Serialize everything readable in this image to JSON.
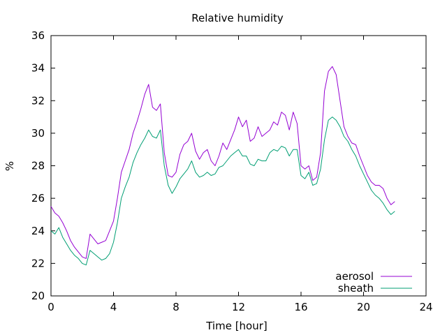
{
  "chart_data": {
    "type": "line",
    "title": "Relative humidity",
    "xlabel": "Time [hour]",
    "ylabel": "%",
    "xlim": [
      0,
      24
    ],
    "ylim": [
      20,
      36
    ],
    "xticks": [
      "0",
      "4",
      "8",
      "12",
      "16",
      "20",
      "24"
    ],
    "yticks": [
      "20",
      "22",
      "24",
      "26",
      "28",
      "30",
      "32",
      "34",
      "36"
    ],
    "grid": false,
    "legend": "bottom-right",
    "series": [
      {
        "name": "aerosol",
        "color": "#9400d3",
        "x": [
          0,
          0.25,
          0.5,
          0.75,
          1.0,
          1.25,
          1.5,
          1.75,
          2.0,
          2.25,
          2.5,
          2.75,
          3.0,
          3.25,
          3.5,
          3.75,
          4.0,
          4.25,
          4.5,
          4.75,
          5.0,
          5.25,
          5.5,
          5.75,
          6.0,
          6.25,
          6.5,
          6.75,
          7.0,
          7.25,
          7.5,
          7.75,
          8.0,
          8.25,
          8.5,
          8.75,
          9.0,
          9.25,
          9.5,
          9.75,
          10.0,
          10.25,
          10.5,
          10.75,
          11.0,
          11.25,
          11.5,
          11.75,
          12.0,
          12.25,
          12.5,
          12.75,
          13.0,
          13.25,
          13.5,
          13.75,
          14.0,
          14.25,
          14.5,
          14.75,
          15.0,
          15.25,
          15.5,
          15.75,
          16.0,
          16.25,
          16.5,
          16.75,
          17.0,
          17.25,
          17.5,
          17.75,
          18.0,
          18.25,
          18.5,
          18.75,
          19.0,
          19.25,
          19.5,
          19.75,
          20.0,
          20.25,
          20.5,
          20.75,
          21.0,
          21.25,
          21.5,
          21.75,
          22.0
        ],
        "y": [
          25.5,
          25.1,
          24.9,
          24.5,
          24.0,
          23.4,
          23.0,
          22.7,
          22.4,
          22.3,
          23.8,
          23.5,
          23.2,
          23.3,
          23.4,
          24.0,
          24.6,
          26.0,
          27.6,
          28.3,
          29.0,
          30.0,
          30.7,
          31.5,
          32.4,
          33.0,
          31.6,
          31.4,
          31.8,
          28.8,
          27.4,
          27.3,
          27.6,
          28.7,
          29.3,
          29.5,
          30.0,
          28.9,
          28.4,
          28.8,
          29.0,
          28.3,
          28.0,
          28.6,
          29.4,
          29.0,
          29.6,
          30.2,
          31.0,
          30.4,
          30.8,
          29.5,
          29.7,
          30.4,
          29.8,
          30.0,
          30.2,
          30.7,
          30.5,
          31.3,
          31.1,
          30.2,
          31.3,
          30.6,
          28.0,
          27.8,
          28.0,
          27.1,
          27.3,
          28.8,
          32.6,
          33.8,
          34.1,
          33.6,
          32.0,
          30.4,
          29.8,
          29.4,
          29.3,
          28.6,
          28.0,
          27.4,
          27.0,
          26.8,
          26.8,
          26.6,
          26.0,
          25.6,
          25.8
        ]
      },
      {
        "name": "sheath",
        "color": "#009e73",
        "x": [
          0,
          0.25,
          0.5,
          0.75,
          1.0,
          1.25,
          1.5,
          1.75,
          2.0,
          2.25,
          2.5,
          2.75,
          3.0,
          3.25,
          3.5,
          3.75,
          4.0,
          4.25,
          4.5,
          4.75,
          5.0,
          5.25,
          5.5,
          5.75,
          6.0,
          6.25,
          6.5,
          6.75,
          7.0,
          7.25,
          7.5,
          7.75,
          8.0,
          8.25,
          8.5,
          8.75,
          9.0,
          9.25,
          9.5,
          9.75,
          10.0,
          10.25,
          10.5,
          10.75,
          11.0,
          11.25,
          11.5,
          11.75,
          12.0,
          12.25,
          12.5,
          12.75,
          13.0,
          13.25,
          13.5,
          13.75,
          14.0,
          14.25,
          14.5,
          14.75,
          15.0,
          15.25,
          15.5,
          15.75,
          16.0,
          16.25,
          16.5,
          16.75,
          17.0,
          17.25,
          17.5,
          17.75,
          18.0,
          18.25,
          18.5,
          18.75,
          19.0,
          19.25,
          19.5,
          19.75,
          20.0,
          20.25,
          20.5,
          20.75,
          21.0,
          21.25,
          21.5,
          21.75,
          22.0
        ],
        "y": [
          24.0,
          23.8,
          24.2,
          23.6,
          23.2,
          22.8,
          22.5,
          22.3,
          22.0,
          21.9,
          22.8,
          22.6,
          22.4,
          22.2,
          22.3,
          22.6,
          23.3,
          24.5,
          26.0,
          26.7,
          27.3,
          28.2,
          28.8,
          29.3,
          29.7,
          30.2,
          29.8,
          29.7,
          30.2,
          28.0,
          26.8,
          26.3,
          26.7,
          27.2,
          27.5,
          27.8,
          28.3,
          27.6,
          27.3,
          27.4,
          27.6,
          27.4,
          27.5,
          27.9,
          28.0,
          28.3,
          28.6,
          28.8,
          29.0,
          28.6,
          28.6,
          28.1,
          28.0,
          28.4,
          28.3,
          28.3,
          28.8,
          29.0,
          28.9,
          29.2,
          29.1,
          28.6,
          29.0,
          29.0,
          27.4,
          27.2,
          27.6,
          26.8,
          26.9,
          27.8,
          29.6,
          30.8,
          31.0,
          30.8,
          30.4,
          29.8,
          29.5,
          29.0,
          28.6,
          28.0,
          27.5,
          27.0,
          26.5,
          26.2,
          26.0,
          25.7,
          25.3,
          25.0,
          25.2
        ]
      }
    ]
  }
}
